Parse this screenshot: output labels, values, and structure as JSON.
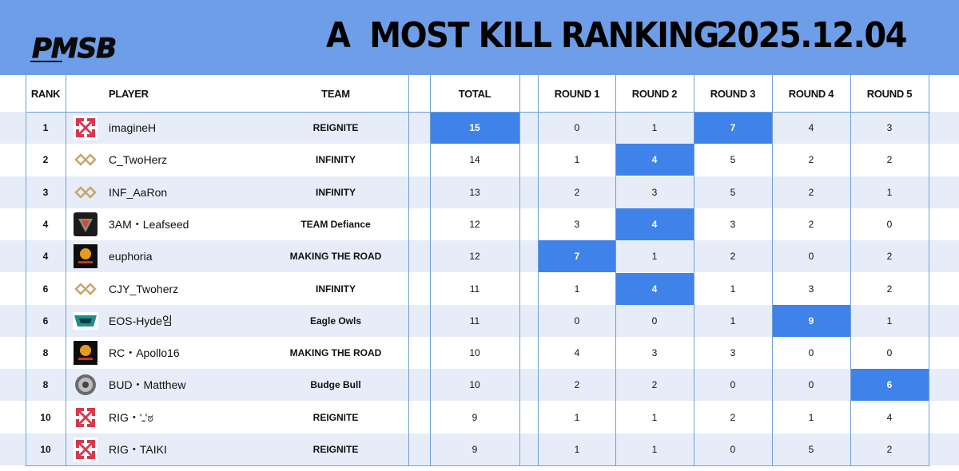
{
  "header": {
    "logo_text": "PMSB",
    "title": "A  MOST KILL RANKING",
    "date": "2025.12.04"
  },
  "columns": {
    "rank": "RANK",
    "player": "PLAYER",
    "team": "TEAM",
    "total": "TOTAL",
    "round1": "ROUND 1",
    "round2": "ROUND 2",
    "round3": "ROUND 3",
    "round4": "ROUND 4",
    "round5": "ROUND 5"
  },
  "colors": {
    "header_bg": "#6f9ee8",
    "highlight": "#3f82ea",
    "row_shade": "#e6edf9",
    "grid_line": "#6fa0d8"
  },
  "rows": [
    {
      "rank": "1",
      "player": "imagineH",
      "team": "REIGNITE",
      "logo": "reignite-logo",
      "total": "15",
      "r1": "0",
      "r2": "1",
      "r3": "7",
      "r4": "4",
      "r5": "3",
      "hi": [
        "total",
        "r3"
      ]
    },
    {
      "rank": "2",
      "player": "C_TwoHerz",
      "team": "INFINITY",
      "logo": "infinity-logo",
      "total": "14",
      "r1": "1",
      "r2": "4",
      "r3": "5",
      "r4": "2",
      "r5": "2",
      "hi": [
        "r2"
      ]
    },
    {
      "rank": "3",
      "player": "INF_AaRon",
      "team": "INFINITY",
      "logo": "infinity-logo",
      "total": "13",
      "r1": "2",
      "r2": "3",
      "r3": "5",
      "r4": "2",
      "r5": "1",
      "hi": []
    },
    {
      "rank": "4",
      "player": "3AM・Leafseed",
      "team": "TEAM Defiance",
      "logo": "defiance-logo",
      "total": "12",
      "r1": "3",
      "r2": "4",
      "r3": "3",
      "r4": "2",
      "r5": "0",
      "hi": [
        "r2"
      ]
    },
    {
      "rank": "4",
      "player": "euphoria",
      "team": "MAKING THE ROAD",
      "logo": "making-the-road-logo",
      "total": "12",
      "r1": "7",
      "r2": "1",
      "r3": "2",
      "r4": "0",
      "r5": "2",
      "hi": [
        "r1"
      ]
    },
    {
      "rank": "6",
      "player": "CJY_Twoherz",
      "team": "INFINITY",
      "logo": "infinity-logo",
      "total": "11",
      "r1": "1",
      "r2": "4",
      "r3": "1",
      "r4": "3",
      "r5": "2",
      "hi": [
        "r2"
      ]
    },
    {
      "rank": "6",
      "player": "EOS-Hyde임",
      "team": "Eagle Owls",
      "logo": "eagle-owls-logo",
      "total": "11",
      "r1": "0",
      "r2": "0",
      "r3": "1",
      "r4": "9",
      "r5": "1",
      "hi": [
        "r4"
      ]
    },
    {
      "rank": "8",
      "player": " RC・Apollo16",
      "team": "MAKING THE ROAD",
      "logo": "making-the-road-logo",
      "total": "10",
      "r1": "4",
      "r2": "3",
      "r3": "3",
      "r4": "0",
      "r5": "0",
      "hi": []
    },
    {
      "rank": "8",
      "player": "BUD・Matthew",
      "team": "Budge Bull",
      "logo": "budge-bull-logo",
      "total": "10",
      "r1": "2",
      "r2": "2",
      "r3": "0",
      "r4": "0",
      "r5": "6",
      "hi": [
        "r5"
      ]
    },
    {
      "rank": "10",
      "player": "RIG・'ـ'ಠ",
      "team": "REIGNITE",
      "logo": "reignite-logo",
      "total": "9",
      "r1": "1",
      "r2": "1",
      "r3": "2",
      "r4": "1",
      "r5": "4",
      "hi": []
    },
    {
      "rank": "10",
      "player": "RIG・TAIKI",
      "team": "REIGNITE",
      "logo": "reignite-logo",
      "total": "9",
      "r1": "1",
      "r2": "1",
      "r3": "0",
      "r4": "5",
      "r5": "2",
      "hi": []
    }
  ]
}
